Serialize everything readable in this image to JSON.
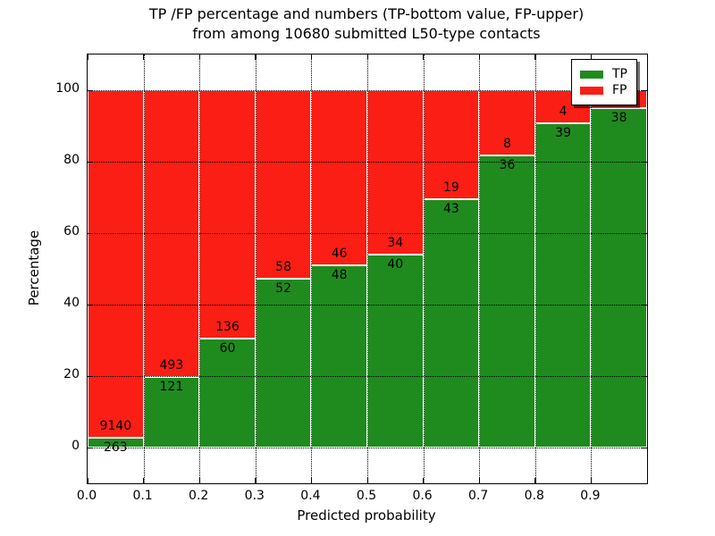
{
  "chart_data": {
    "type": "bar",
    "stacked": true,
    "title_line1": "TP /FP percentage and numbers (TP-bottom value, FP-upper)",
    "title_line2": "from among 10680 submitted L50-type contacts",
    "xlabel": "Predicted probability",
    "ylabel": "Percentage",
    "xlim": [
      0.0,
      1.0
    ],
    "ylim": [
      -10,
      110
    ],
    "x_tick_labels": [
      "0.0",
      "0.1",
      "0.2",
      "0.3",
      "0.4",
      "0.5",
      "0.6",
      "0.7",
      "0.8",
      "0.9"
    ],
    "y_tick_values": [
      0,
      20,
      40,
      60,
      80,
      100
    ],
    "grid": true,
    "bar_width": 0.1,
    "colors": {
      "tp": "#1f8b1f",
      "fp": "#fb1e14",
      "bar_edge": "#ffffff"
    },
    "legend": {
      "position": "upper right",
      "items": [
        {
          "key": "tp",
          "label": "TP"
        },
        {
          "key": "fp",
          "label": "FP"
        }
      ]
    },
    "bars": [
      {
        "x_start": 0.0,
        "x_end": 0.1,
        "tp_count": 263,
        "fp_count": 9140,
        "tp_percent": 2.8
      },
      {
        "x_start": 0.1,
        "x_end": 0.2,
        "tp_count": 121,
        "fp_count": 493,
        "tp_percent": 19.7
      },
      {
        "x_start": 0.2,
        "x_end": 0.3,
        "tp_count": 60,
        "fp_count": 136,
        "tp_percent": 30.6
      },
      {
        "x_start": 0.3,
        "x_end": 0.4,
        "tp_count": 52,
        "fp_count": 58,
        "tp_percent": 47.3
      },
      {
        "x_start": 0.4,
        "x_end": 0.5,
        "tp_count": 48,
        "fp_count": 46,
        "tp_percent": 51.1
      },
      {
        "x_start": 0.5,
        "x_end": 0.6,
        "tp_count": 40,
        "fp_count": 34,
        "tp_percent": 54.1
      },
      {
        "x_start": 0.6,
        "x_end": 0.7,
        "tp_count": 43,
        "fp_count": 19,
        "tp_percent": 69.4
      },
      {
        "x_start": 0.7,
        "x_end": 0.8,
        "tp_count": 36,
        "fp_count": 8,
        "tp_percent": 81.8
      },
      {
        "x_start": 0.8,
        "x_end": 0.9,
        "tp_count": 39,
        "fp_count": 4,
        "tp_percent": 90.7
      },
      {
        "x_start": 0.9,
        "x_end": 1.0,
        "tp_count": 38,
        "fp_count": null,
        "fp_label_hidden_behind_legend": true,
        "tp_percent": 95.0
      }
    ]
  }
}
